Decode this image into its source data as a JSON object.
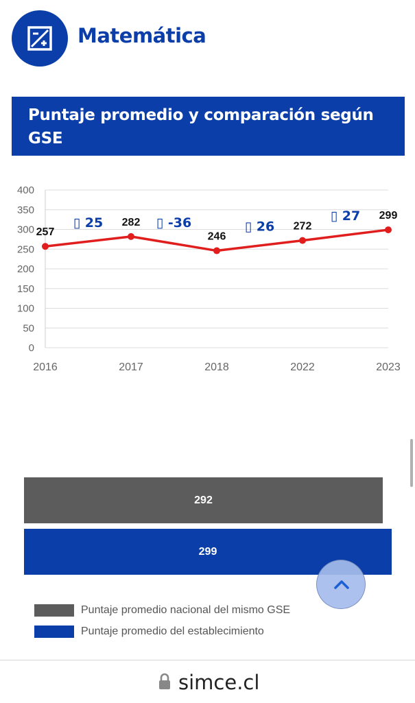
{
  "subject": {
    "title": "Matemática",
    "icon": "math-calc-icon"
  },
  "section": {
    "title_line1": "Puntaje promedio y comparación según",
    "title_line2": "GSE"
  },
  "colors": {
    "brand": "#0b3ea8",
    "line": "#e01e1e",
    "gray_bar": "#5c5c5c"
  },
  "chart_data": [
    {
      "type": "line",
      "title": "",
      "xlabel": "",
      "ylabel": "",
      "categories": [
        "2016",
        "2017",
        "2018",
        "2022",
        "2023"
      ],
      "values": [
        257,
        282,
        246,
        272,
        299
      ],
      "ylim": [
        0,
        400
      ],
      "yticks": [
        0,
        50,
        100,
        150,
        200,
        250,
        300,
        350,
        400
      ],
      "grid": true,
      "differences": [
        "▯ 25",
        "▯ -36",
        "▯ 26",
        "▯ 27"
      ]
    },
    {
      "type": "bar",
      "orientation": "horizontal",
      "categories": [
        "Puntaje promedio nacional del mismo GSE",
        "Puntaje promedio del establecimiento"
      ],
      "values": [
        292,
        299
      ],
      "colors": [
        "#5c5c5c",
        "#0b3ea8"
      ],
      "legend": "bottom-left"
    }
  ],
  "bars": {
    "gse": {
      "value": "292"
    },
    "school": {
      "value": "299"
    }
  },
  "legend": {
    "gse_label": "Puntaje promedio nacional del mismo GSE",
    "school_label": "Puntaje promedio del establecimiento"
  },
  "url_bar": {
    "domain": "simce.cl"
  }
}
